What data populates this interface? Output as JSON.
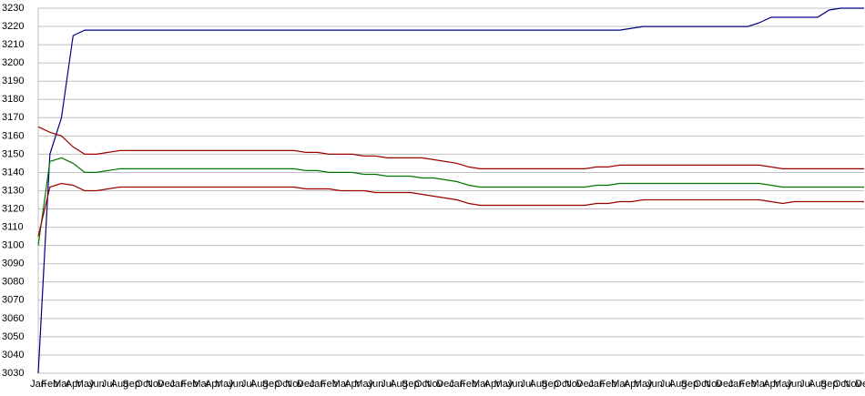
{
  "chart_data": {
    "type": "line",
    "categories": [
      "Jan",
      "Feb",
      "Mar",
      "Apr",
      "May",
      "Jun",
      "Jul",
      "Aug",
      "Sep",
      "Oct",
      "Nov",
      "Dec",
      "Jan",
      "Feb",
      "Mar",
      "Apr",
      "May",
      "Jun",
      "Jul",
      "Aug",
      "Sep",
      "Oct",
      "Nov",
      "Dec",
      "Jan",
      "Feb",
      "Mar",
      "Apr",
      "May",
      "Jun",
      "Jul",
      "Aug",
      "Sep",
      "Oct",
      "Nov",
      "Dec",
      "Jan",
      "Feb",
      "Mar",
      "Apr",
      "May",
      "Jun",
      "Jul",
      "Aug",
      "Sep",
      "Oct",
      "Nov",
      "Dec",
      "Jan",
      "Feb",
      "Mar",
      "Apr",
      "May",
      "Jun",
      "Jul",
      "Aug",
      "Sep",
      "Oct",
      "Nov",
      "Dec",
      "Jan",
      "Feb",
      "Mar",
      "Apr",
      "May",
      "Jun",
      "Jul",
      "Aug",
      "Sep",
      "Oct",
      "Nov",
      "Dec"
    ],
    "series": [
      {
        "color": "#000080",
        "values": [
          3030,
          3150,
          3170,
          3215,
          3218,
          3218,
          3218,
          3218,
          3218,
          3218,
          3218,
          3218,
          3218,
          3218,
          3218,
          3218,
          3218,
          3218,
          3218,
          3218,
          3218,
          3218,
          3218,
          3218,
          3218,
          3218,
          3218,
          3218,
          3218,
          3218,
          3218,
          3218,
          3218,
          3218,
          3218,
          3218,
          3218,
          3218,
          3218,
          3218,
          3218,
          3218,
          3218,
          3218,
          3218,
          3218,
          3218,
          3218,
          3218,
          3218,
          3218,
          3219,
          3220,
          3220,
          3220,
          3220,
          3220,
          3220,
          3220,
          3220,
          3220,
          3220,
          3222,
          3225,
          3225,
          3225,
          3225,
          3225,
          3229,
          3230,
          3230,
          3230
        ]
      },
      {
        "color": "#990000",
        "values": [
          3165,
          3162,
          3160,
          3154,
          3150,
          3150,
          3151,
          3152,
          3152,
          3152,
          3152,
          3152,
          3152,
          3152,
          3152,
          3152,
          3152,
          3152,
          3152,
          3152,
          3152,
          3152,
          3152,
          3151,
          3151,
          3150,
          3150,
          3150,
          3149,
          3149,
          3148,
          3148,
          3148,
          3148,
          3147,
          3146,
          3145,
          3143,
          3142,
          3142,
          3142,
          3142,
          3142,
          3142,
          3142,
          3142,
          3142,
          3142,
          3143,
          3143,
          3144,
          3144,
          3144,
          3144,
          3144,
          3144,
          3144,
          3144,
          3144,
          3144,
          3144,
          3144,
          3144,
          3143,
          3142,
          3142,
          3142,
          3142,
          3142,
          3142,
          3142,
          3142
        ]
      },
      {
        "color": "#007700",
        "values": [
          3100,
          3146,
          3148,
          3145,
          3140,
          3140,
          3141,
          3142,
          3142,
          3142,
          3142,
          3142,
          3142,
          3142,
          3142,
          3142,
          3142,
          3142,
          3142,
          3142,
          3142,
          3142,
          3142,
          3141,
          3141,
          3140,
          3140,
          3140,
          3139,
          3139,
          3138,
          3138,
          3138,
          3137,
          3137,
          3136,
          3135,
          3133,
          3132,
          3132,
          3132,
          3132,
          3132,
          3132,
          3132,
          3132,
          3132,
          3132,
          3133,
          3133,
          3134,
          3134,
          3134,
          3134,
          3134,
          3134,
          3134,
          3134,
          3134,
          3134,
          3134,
          3134,
          3134,
          3133,
          3132,
          3132,
          3132,
          3132,
          3132,
          3132,
          3132,
          3132
        ]
      },
      {
        "color": "#990000",
        "values": [
          3105,
          3132,
          3134,
          3133,
          3130,
          3130,
          3131,
          3132,
          3132,
          3132,
          3132,
          3132,
          3132,
          3132,
          3132,
          3132,
          3132,
          3132,
          3132,
          3132,
          3132,
          3132,
          3132,
          3131,
          3131,
          3131,
          3130,
          3130,
          3130,
          3129,
          3129,
          3129,
          3129,
          3128,
          3127,
          3126,
          3125,
          3123,
          3122,
          3122,
          3122,
          3122,
          3122,
          3122,
          3122,
          3122,
          3122,
          3122,
          3123,
          3123,
          3124,
          3124,
          3125,
          3125,
          3125,
          3125,
          3125,
          3125,
          3125,
          3125,
          3125,
          3125,
          3125,
          3124,
          3123,
          3124,
          3124,
          3124,
          3124,
          3124,
          3124,
          3124
        ]
      }
    ],
    "ylim": [
      3030,
      3230
    ],
    "yticks": [
      3030,
      3040,
      3050,
      3060,
      3070,
      3080,
      3090,
      3100,
      3110,
      3120,
      3130,
      3140,
      3150,
      3160,
      3170,
      3180,
      3190,
      3200,
      3210,
      3220,
      3230
    ],
    "grid": true
  }
}
